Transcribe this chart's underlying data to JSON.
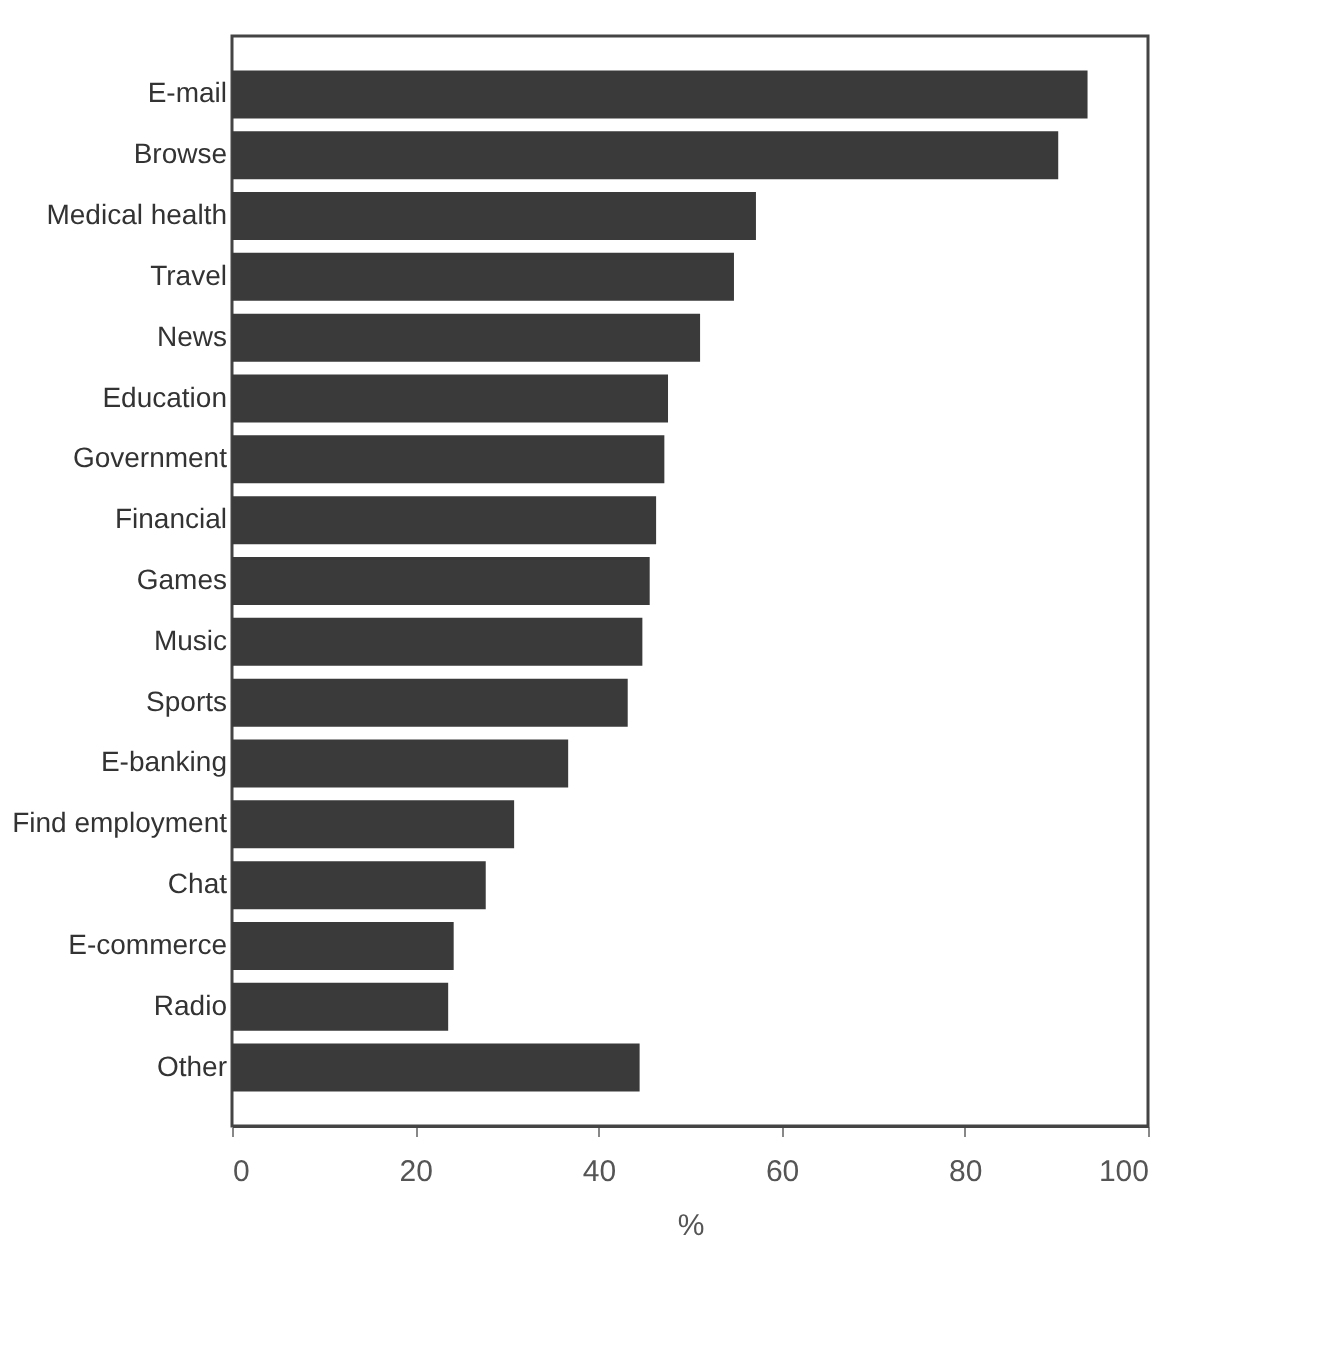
{
  "chart_data": {
    "type": "bar",
    "orientation": "horizontal",
    "xlabel": "%",
    "categories": [
      "E-mail",
      "Browse",
      "Medical health",
      "Travel",
      "News",
      "Education",
      "Government",
      "Financial",
      "Games",
      "Music",
      "Sports",
      "E-banking",
      "Find employment",
      "Chat",
      "E-commerce",
      "Radio",
      "Other"
    ],
    "values": [
      93.4,
      90.2,
      57.2,
      54.8,
      51.1,
      47.6,
      47.2,
      46.3,
      45.6,
      44.8,
      43.2,
      36.7,
      30.8,
      27.7,
      24.2,
      23.6,
      44.5
    ],
    "color": "#3a3a3a",
    "xlim": [
      0,
      100
    ],
    "xticks": [
      0,
      20,
      40,
      60,
      80,
      100
    ],
    "grid": false
  }
}
